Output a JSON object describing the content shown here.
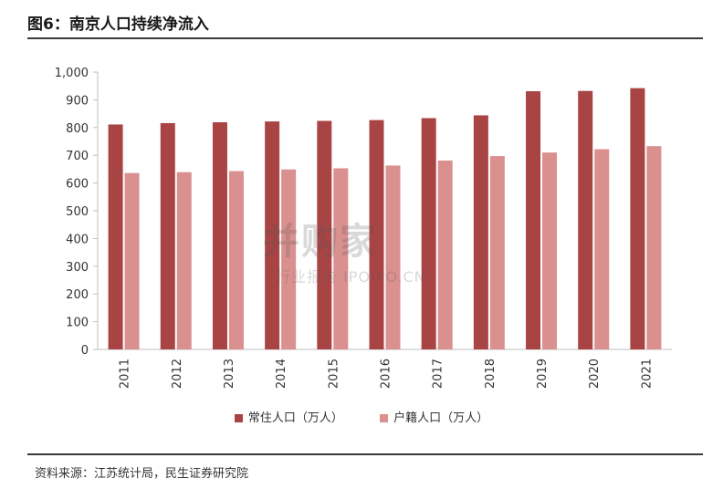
{
  "title": "图6：南京人口持续净流入",
  "source": "资料来源：江苏统计局，民生证券研究院",
  "watermark": {
    "main": "并购家",
    "sub": "行业报告 IPOIPO.CN"
  },
  "colors": {
    "series1": "#a94444",
    "series2": "#d9908f",
    "axis": "#bfbfbf"
  },
  "chart_data": {
    "type": "bar",
    "categories": [
      "2011",
      "2012",
      "2013",
      "2014",
      "2015",
      "2016",
      "2017",
      "2018",
      "2019",
      "2020",
      "2021"
    ],
    "series": [
      {
        "name": "常住人口（万人）",
        "values": [
          811,
          816,
          819,
          822,
          824,
          827,
          834,
          844,
          931,
          932,
          942
        ]
      },
      {
        "name": "户籍人口（万人）",
        "values": [
          636,
          639,
          643,
          649,
          653,
          663,
          681,
          697,
          710,
          722,
          733
        ]
      }
    ],
    "ylim": [
      0,
      1000
    ],
    "yticks": [
      0,
      100,
      200,
      300,
      400,
      500,
      600,
      700,
      800,
      900,
      1000
    ],
    "ytick_labels": [
      "0",
      "100",
      "200",
      "300",
      "400",
      "500",
      "600",
      "700",
      "800",
      "900",
      "1,000"
    ],
    "legend": "bottom",
    "grid": false
  }
}
